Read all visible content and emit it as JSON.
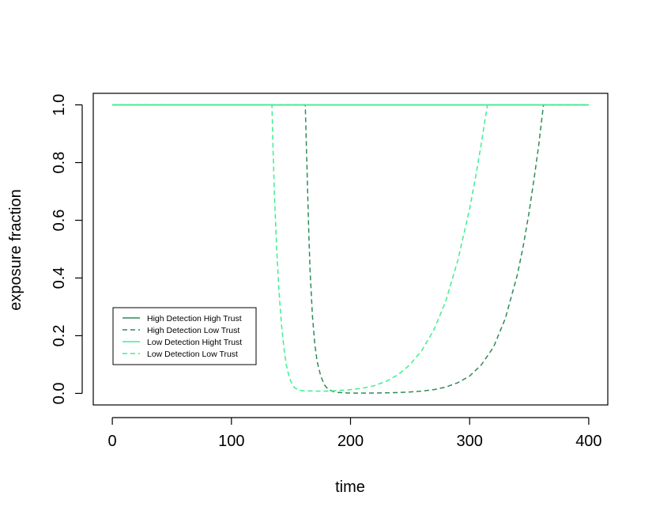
{
  "chart_data": {
    "type": "line",
    "title": "",
    "xlabel": "time",
    "ylabel": "exposure fraction",
    "xlim": [
      -16,
      416
    ],
    "ylim": [
      -0.04,
      1.04
    ],
    "xticks": [
      0,
      100,
      200,
      300,
      400
    ],
    "yticks": [
      0.0,
      0.2,
      0.4,
      0.6,
      0.8,
      1.0
    ],
    "xtick_labels": [
      "0",
      "100",
      "200",
      "300",
      "400"
    ],
    "ytick_labels": [
      "0.0",
      "0.2",
      "0.4",
      "0.6",
      "0.8",
      "1.0"
    ],
    "grid": false,
    "legend_position": "bottom-left",
    "series": [
      {
        "name": "High Detection High Trust",
        "color": "#2e8b57",
        "dash": "solid",
        "x": [
          0,
          400
        ],
        "y": [
          1.0,
          1.0
        ]
      },
      {
        "name": "High Detection Low Trust",
        "color": "#2e8b57",
        "dash": "dashed",
        "x": [
          0,
          162,
          163,
          164,
          165,
          166,
          168,
          170,
          172,
          175,
          178,
          181,
          185,
          190,
          200,
          210,
          220,
          230,
          240,
          250,
          260,
          270,
          280,
          290,
          300,
          310,
          320,
          330,
          340,
          345,
          350,
          355,
          358,
          360,
          362,
          400
        ],
        "y": [
          1.0,
          1.0,
          0.85,
          0.7,
          0.55,
          0.43,
          0.27,
          0.17,
          0.11,
          0.06,
          0.03,
          0.015,
          0.007,
          0.003,
          0.001,
          0.001,
          0.0015,
          0.002,
          0.003,
          0.005,
          0.008,
          0.013,
          0.022,
          0.037,
          0.06,
          0.1,
          0.16,
          0.26,
          0.41,
          0.51,
          0.63,
          0.77,
          0.86,
          0.93,
          1.0,
          1.0
        ]
      },
      {
        "name": "Low Detection Hight Trust",
        "color": "#3cf08f",
        "dash": "solid",
        "x": [
          0,
          400
        ],
        "y": [
          1.0,
          1.0
        ]
      },
      {
        "name": "Low Detection Low Trust",
        "color": "#3cf08f",
        "dash": "dashed",
        "x": [
          0,
          134,
          135,
          136,
          138,
          140,
          142,
          144,
          146,
          148,
          150,
          153,
          156,
          160,
          170,
          180,
          190,
          200,
          210,
          220,
          230,
          240,
          250,
          260,
          270,
          280,
          290,
          300,
          305,
          310,
          313,
          315,
          400
        ],
        "y": [
          1.0,
          1.0,
          0.84,
          0.7,
          0.5,
          0.35,
          0.24,
          0.16,
          0.1,
          0.065,
          0.04,
          0.02,
          0.012,
          0.009,
          0.008,
          0.008,
          0.01,
          0.013,
          0.018,
          0.027,
          0.042,
          0.065,
          0.1,
          0.15,
          0.22,
          0.32,
          0.46,
          0.64,
          0.75,
          0.87,
          0.95,
          1.0,
          1.0
        ]
      }
    ]
  }
}
